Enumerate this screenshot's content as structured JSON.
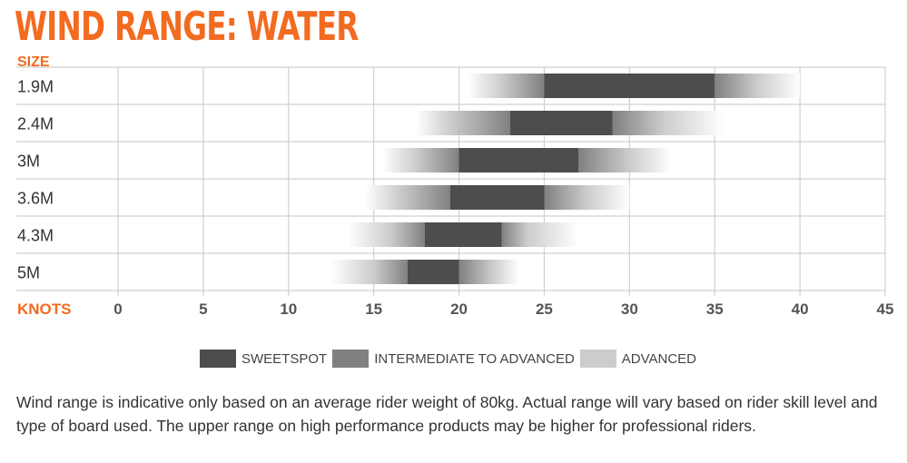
{
  "title": "WIND RANGE: WATER",
  "chart_data": {
    "type": "bar",
    "orientation": "horizontal-range",
    "ylabel": "SIZE",
    "xlabel": "KNOTS",
    "xlim": [
      0,
      45
    ],
    "xticks": [
      0,
      5,
      10,
      15,
      20,
      25,
      30,
      35,
      40,
      45
    ],
    "grid": true,
    "legend_position": "bottom",
    "categories": [
      "1.9M",
      "2.4M",
      "3M",
      "3.6M",
      "4.3M",
      "5M"
    ],
    "series": [
      {
        "name": "SWEETSPOT",
        "color": "#4d4d4d",
        "ranges": [
          [
            25,
            35
          ],
          [
            23,
            29
          ],
          [
            20,
            27
          ],
          [
            19.5,
            25
          ],
          [
            18,
            22.5
          ],
          [
            17,
            20
          ]
        ]
      },
      {
        "name": "INTERMEDIATE TO ADVANCED",
        "color": "#808080",
        "ranges": [
          [
            22.5,
            37.5
          ],
          [
            19.5,
            32
          ],
          [
            17.5,
            30
          ],
          [
            16.5,
            27.5
          ],
          [
            16,
            24
          ],
          [
            15,
            22
          ]
        ]
      },
      {
        "name": "ADVANCED",
        "color": "#cccccc",
        "ranges": [
          [
            20.5,
            40
          ],
          [
            17.5,
            35.5
          ],
          [
            15.5,
            32.5
          ],
          [
            14.5,
            30
          ],
          [
            13.5,
            27
          ],
          [
            12.5,
            23.5
          ]
        ]
      }
    ]
  },
  "note": "Wind range is indicative only based on an average rider weight of 80kg. Actual range will vary based on rider skill level and type of board used. The upper range on high performance products may be higher for professional riders."
}
